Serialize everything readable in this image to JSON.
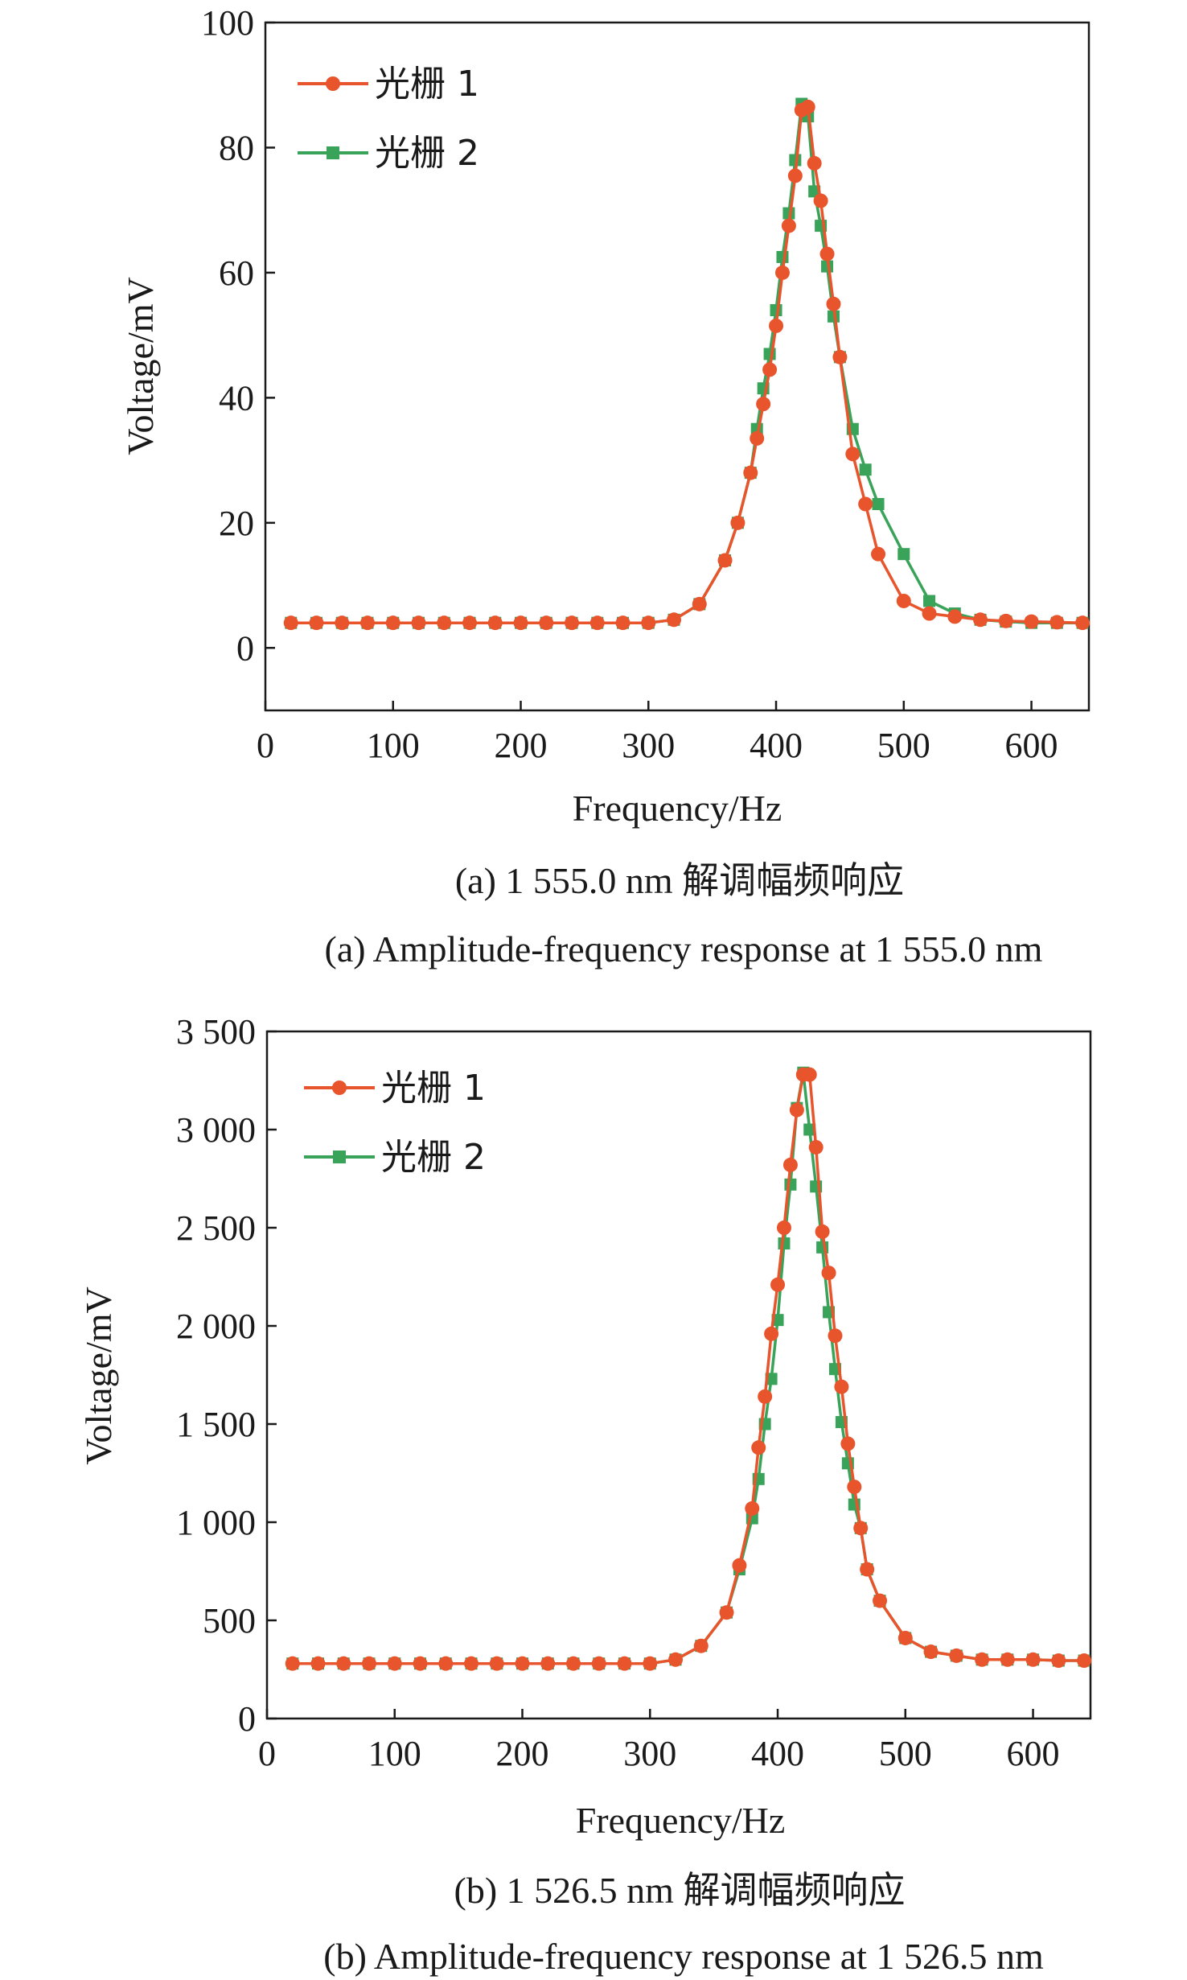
{
  "chart_data": [
    {
      "type": "line",
      "xlabel": "Frequency/Hz",
      "ylabel": "Voltage/mV",
      "xlim": [
        0,
        645
      ],
      "ylim": [
        -10,
        100
      ],
      "x_ticks": [
        0,
        100,
        200,
        300,
        400,
        500,
        600
      ],
      "x_tick_labels": [
        "0",
        "100",
        "200",
        "300",
        "400",
        "500",
        "600"
      ],
      "y_ticks": [
        0,
        20,
        40,
        60,
        80,
        100
      ],
      "y_tick_labels": [
        "0",
        "20",
        "40",
        "60",
        "80",
        "100"
      ],
      "grid": false,
      "legend_position": "top-left",
      "caption_cn": "(a) 1 555.0 nm 解调幅频响应",
      "caption_en": "(a) Amplitude-frequency response at 1 555.0 nm",
      "series": [
        {
          "name": "光栅 1",
          "color": "#e8542c",
          "marker": "circle",
          "x": [
            20,
            40,
            60,
            80,
            100,
            120,
            140,
            160,
            180,
            200,
            220,
            240,
            260,
            280,
            300,
            320,
            340,
            360,
            370,
            380,
            385,
            390,
            395,
            400,
            405,
            410,
            415,
            420,
            425,
            430,
            435,
            440,
            445,
            450,
            460,
            470,
            480,
            500,
            520,
            540,
            560,
            580,
            600,
            620,
            640
          ],
          "y": [
            4,
            4,
            4,
            4,
            4,
            4,
            4,
            4,
            4,
            4,
            4,
            4,
            4,
            4,
            4,
            4.5,
            7,
            14,
            20,
            28,
            33.5,
            39,
            44.5,
            51.5,
            60,
            67.5,
            75.5,
            86,
            86.5,
            77.5,
            71.5,
            63,
            55,
            46.5,
            31,
            23,
            15,
            7.5,
            5.5,
            5,
            4.5,
            4.3,
            4.2,
            4.1,
            4
          ]
        },
        {
          "name": "光栅 2",
          "color": "#3aa35a",
          "marker": "square",
          "x": [
            20,
            40,
            60,
            80,
            100,
            120,
            140,
            160,
            180,
            200,
            220,
            240,
            260,
            280,
            300,
            320,
            340,
            360,
            370,
            380,
            385,
            390,
            395,
            400,
            405,
            410,
            415,
            420,
            425,
            430,
            435,
            440,
            445,
            450,
            460,
            470,
            480,
            500,
            520,
            540,
            560,
            580,
            600,
            620,
            640
          ],
          "y": [
            4,
            4,
            4,
            4,
            4,
            4,
            4,
            4,
            4,
            4,
            4,
            4,
            4,
            4,
            4,
            4.5,
            7,
            14,
            20,
            28,
            35,
            41.5,
            47,
            54,
            62.5,
            69.5,
            78,
            87,
            85,
            73,
            67.5,
            61,
            53,
            46.5,
            35,
            28.5,
            23,
            15,
            7.5,
            5.5,
            4.5,
            4.2,
            4,
            4,
            4
          ]
        }
      ]
    },
    {
      "type": "line",
      "xlabel": "Frequency/Hz",
      "ylabel": "Voltage/mV",
      "xlim": [
        0,
        645
      ],
      "ylim": [
        0,
        3500
      ],
      "x_ticks": [
        0,
        100,
        200,
        300,
        400,
        500,
        600
      ],
      "x_tick_labels": [
        "0",
        "100",
        "200",
        "300",
        "400",
        "500",
        "600"
      ],
      "y_ticks": [
        0,
        500,
        1000,
        1500,
        2000,
        2500,
        3000,
        3500
      ],
      "y_tick_labels": [
        "0",
        "500",
        "1 000",
        "1 500",
        "2 000",
        "2 500",
        "3 000",
        "3 500"
      ],
      "grid": false,
      "legend_position": "top-left",
      "caption_cn": "(b) 1 526.5 nm 解调幅频响应",
      "caption_en": "(b) Amplitude-frequency response at 1 526.5 nm",
      "series": [
        {
          "name": "光栅 1",
          "color": "#e8542c",
          "marker": "circle",
          "x": [
            20,
            40,
            60,
            80,
            100,
            120,
            140,
            160,
            180,
            200,
            220,
            240,
            260,
            280,
            300,
            320,
            340,
            360,
            370,
            380,
            385,
            390,
            395,
            400,
            405,
            410,
            415,
            420,
            425,
            430,
            435,
            440,
            445,
            450,
            455,
            460,
            465,
            470,
            480,
            500,
            520,
            540,
            560,
            580,
            600,
            620,
            640
          ],
          "y": [
            280,
            280,
            280,
            280,
            280,
            280,
            280,
            280,
            280,
            280,
            280,
            280,
            280,
            280,
            280,
            300,
            370,
            540,
            780,
            1070,
            1380,
            1640,
            1960,
            2210,
            2500,
            2820,
            3100,
            3280,
            3280,
            2910,
            2480,
            2270,
            1950,
            1690,
            1400,
            1180,
            970,
            760,
            600,
            410,
            340,
            320,
            300,
            300,
            300,
            295,
            295
          ]
        },
        {
          "name": "光栅 2",
          "color": "#3aa35a",
          "marker": "square",
          "x": [
            20,
            40,
            60,
            80,
            100,
            120,
            140,
            160,
            180,
            200,
            220,
            240,
            260,
            280,
            300,
            320,
            340,
            360,
            370,
            380,
            385,
            390,
            395,
            400,
            405,
            410,
            415,
            420,
            425,
            430,
            435,
            440,
            445,
            450,
            455,
            460,
            465,
            470,
            480,
            500,
            520,
            540,
            560,
            580,
            600,
            620,
            640
          ],
          "y": [
            280,
            280,
            280,
            280,
            280,
            280,
            280,
            280,
            280,
            280,
            280,
            280,
            280,
            280,
            280,
            300,
            370,
            540,
            760,
            1020,
            1220,
            1500,
            1730,
            2030,
            2420,
            2720,
            3110,
            3290,
            3000,
            2710,
            2400,
            2070,
            1780,
            1510,
            1300,
            1090,
            970,
            760,
            600,
            410,
            340,
            320,
            300,
            300,
            300,
            295,
            295
          ]
        }
      ]
    }
  ]
}
